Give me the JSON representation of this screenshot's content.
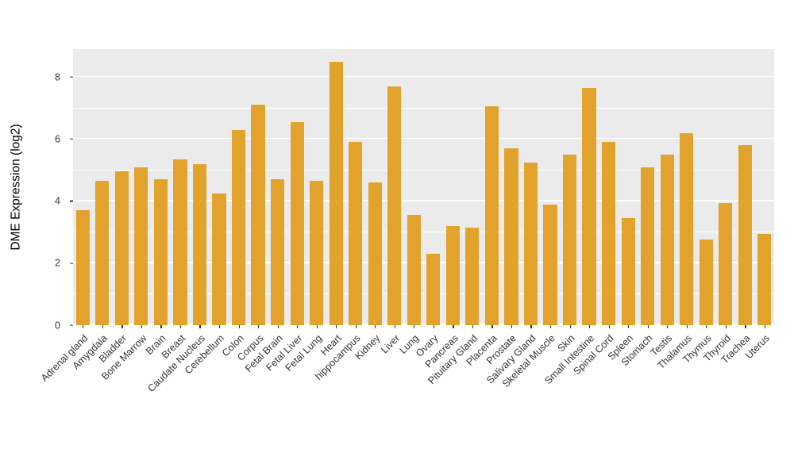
{
  "chart_data": {
    "type": "bar",
    "title": "",
    "xlabel": "",
    "ylabel": "DME Expression (log2)",
    "categories": [
      "Adrenal gland",
      "Amygdala",
      "Bladder",
      "Bone Marrow",
      "Brain",
      "Breast",
      "Caudate Nucleus",
      "Cerebellum",
      "Colon",
      "Corpus",
      "Fetal Brain",
      "Fetal Liver",
      "Fetal Lung",
      "Heart",
      "hippocampus",
      "Kidney",
      "Liver",
      "Lung",
      "Ovary",
      "Pancreas",
      "Pituitary Gland",
      "Placenta",
      "Prostate",
      "Salivary Gland",
      "Skeletal Muscle",
      "Skin",
      "Small Intestine",
      "Spinal Cord",
      "Spleen",
      "Stomach",
      "Testis",
      "Thalamus",
      "Thymus",
      "Thyroid",
      "Trachea",
      "Uterus"
    ],
    "values": [
      3.7,
      4.65,
      4.95,
      5.1,
      4.7,
      5.35,
      5.2,
      4.25,
      6.3,
      7.1,
      4.7,
      6.55,
      4.65,
      8.5,
      5.9,
      4.6,
      7.7,
      3.55,
      2.3,
      3.2,
      3.15,
      7.05,
      5.7,
      5.25,
      3.9,
      5.5,
      7.65,
      5.9,
      3.45,
      5.1,
      5.5,
      6.2,
      2.75,
      3.95,
      5.8,
      2.95
    ],
    "yticks": [
      0,
      2,
      4,
      6,
      8
    ],
    "yticks_minor": [
      1,
      3,
      5,
      7
    ],
    "ylim": [
      0,
      8.9
    ],
    "grid": true,
    "legend": "none",
    "bar_color": "#E2A32C",
    "panel_bg": "#EBEBEB",
    "grid_color": "#FFFFFF",
    "tick_text_color": "#333333"
  }
}
